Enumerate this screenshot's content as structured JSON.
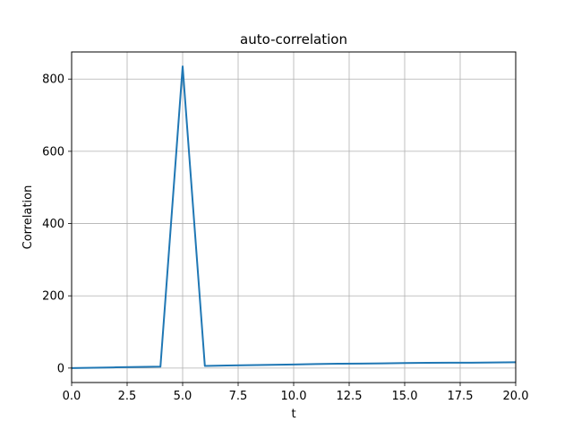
{
  "chart_data": {
    "type": "line",
    "title": "auto-correlation",
    "xlabel": "t",
    "ylabel": "Correlation",
    "xlim": [
      0,
      20
    ],
    "ylim": [
      -40,
      875
    ],
    "grid": true,
    "xticks": [
      0,
      2.5,
      5,
      7.5,
      10,
      12.5,
      15,
      17.5,
      20
    ],
    "xtick_labels": [
      "0.0",
      "2.5",
      "5.0",
      "7.5",
      "10.0",
      "12.5",
      "15.0",
      "17.5",
      "20.0"
    ],
    "yticks": [
      0,
      200,
      400,
      600,
      800
    ],
    "ytick_labels": [
      "0",
      "200",
      "400",
      "600",
      "800"
    ],
    "line_color": "#1f77b4",
    "grid_color": "#b0b0b0",
    "series": [
      {
        "x": [
          0,
          1,
          2,
          3,
          4,
          5,
          6,
          7,
          8,
          9,
          10,
          11,
          12,
          13,
          14,
          15,
          16,
          17,
          18,
          19,
          20
        ],
        "y": [
          0,
          1,
          2,
          3,
          4,
          835,
          6,
          7,
          8,
          9,
          10,
          11,
          12,
          12.5,
          13,
          14,
          14.5,
          15,
          15,
          15.5,
          16
        ]
      }
    ]
  }
}
